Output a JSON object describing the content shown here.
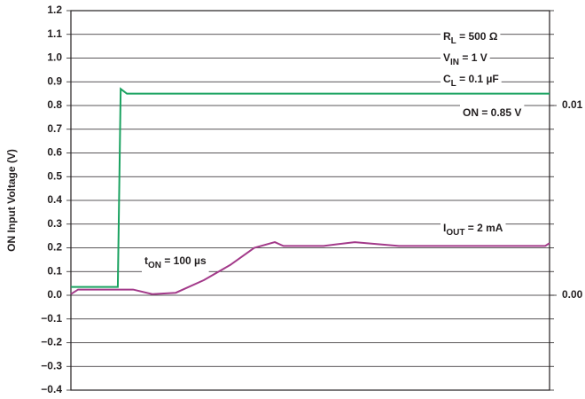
{
  "chart_data": {
    "type": "line",
    "y_label": "ON Input Voltage (V)",
    "xlim": [
      0,
      100
    ],
    "ylim": [
      -0.4,
      1.2
    ],
    "yticks": [
      {
        "value": -0.4,
        "label": "−0.4"
      },
      {
        "value": -0.3,
        "label": "−0.3"
      },
      {
        "value": -0.2,
        "label": "−0.2"
      },
      {
        "value": -0.1,
        "label": "−0.1"
      },
      {
        "value": 0,
        "label": "0.0"
      },
      0.1,
      0.2,
      0.3,
      0.4,
      0.5,
      0.6,
      0.7,
      0.8,
      0.9,
      {
        "value": 1,
        "label": "1.0"
      },
      1.1,
      1.2
    ],
    "y2lim": [
      -0.005,
      0.015
    ],
    "y2ticks": [
      {
        "value": 0,
        "label": "0.00"
      },
      0.01
    ],
    "grid": true,
    "series": [
      {
        "name": "ON",
        "color": "#1aa260",
        "x": [
          0,
          9.8,
          10.4,
          11.7,
          100
        ],
        "values": [
          0.035,
          0.035,
          0.87,
          0.85,
          0.85
        ]
      },
      {
        "name": "IOUT",
        "color": "#a33a8a",
        "axis": "y2",
        "x": [
          0,
          1.5,
          13,
          17,
          21.9,
          27.8,
          33.3,
          38.3,
          42.6,
          44.4,
          52.8,
          59.3,
          68.5,
          99.1,
          100
        ],
        "values": [
          6e-05,
          0.0003,
          0.0003,
          6e-05,
          0.00013,
          0.0008,
          0.0016,
          0.0025,
          0.0028,
          0.0026,
          0.0026,
          0.0028,
          0.0026,
          0.0026,
          0.00275
        ]
      }
    ],
    "annotations": [
      {
        "main": "R",
        "sub": "L",
        "rest": " = 500 Ω"
      },
      {
        "main": "V",
        "sub": "IN",
        "rest": " = 1 V"
      },
      {
        "main": "C",
        "sub": "L",
        "rest": " = 0.1 µF"
      },
      {
        "main": "ON = 0.85 V"
      },
      {
        "main": "I",
        "sub": "OUT",
        "rest": " = 2 mA"
      },
      {
        "main": "t",
        "sub": "ON",
        "rest": " = 100 µs"
      }
    ]
  }
}
